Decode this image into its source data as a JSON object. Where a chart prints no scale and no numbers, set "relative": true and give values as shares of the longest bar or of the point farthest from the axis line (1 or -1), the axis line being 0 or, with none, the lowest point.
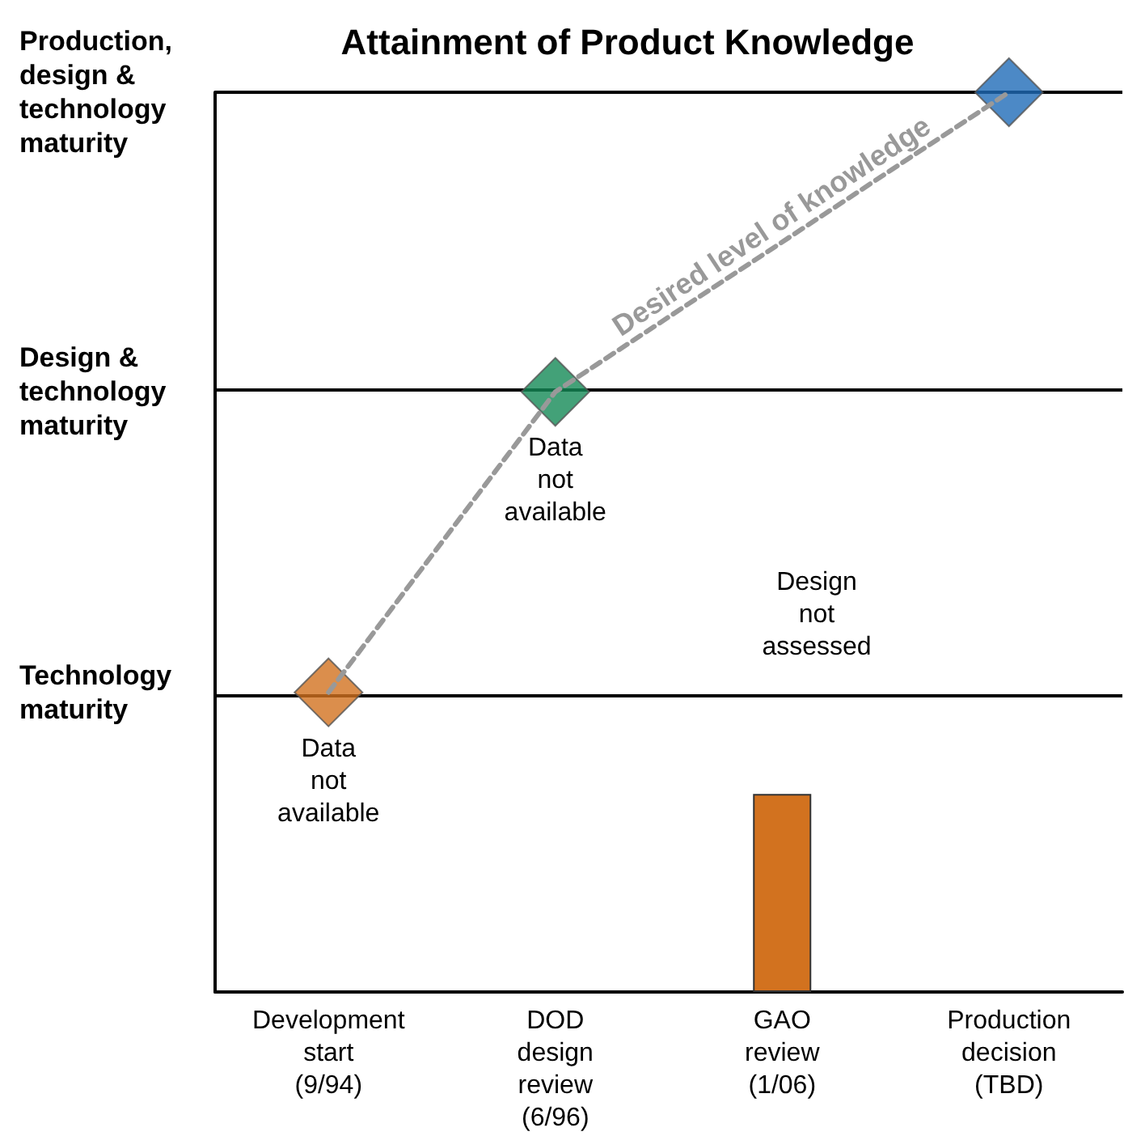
{
  "chart_data": {
    "type": "bar",
    "title": "Attainment of Product Knowledge",
    "relative": true,
    "categories": [
      "Development start (9/94)",
      "DOD design review (6/96)",
      "GAO review (1/06)",
      "Production decision (TBD)"
    ],
    "series": [
      {
        "name": "Desired level of knowledge",
        "type": "line",
        "color": "#999999",
        "line_style": "dashed",
        "marker": "none",
        "values": [
          0.333,
          0.667,
          null,
          1
        ]
      },
      {
        "type": "scatter",
        "marker": "diamond",
        "colors": [
          "#d2721f",
          "#148a56",
          "#1f6bb8",
          "#1f6bb8"
        ],
        "values": [
          0.333,
          0.667,
          null,
          1
        ]
      },
      {
        "color": "#d2721f",
        "values": [
          null,
          null,
          0.22,
          null
        ]
      }
    ],
    "ref_lines": [
      {
        "axis": "y",
        "value": 0.333,
        "label": "Technology maturity",
        "color": "#000000"
      },
      {
        "axis": "y",
        "value": 0.667,
        "label": "Design & technology maturity",
        "color": "#000000"
      },
      {
        "axis": "y",
        "value": 1,
        "label": "Production, design & technology maturity",
        "color": "#000000"
      }
    ],
    "annotations": [
      {
        "text": "Data not available",
        "x": "Development start (9/94)",
        "y": 0.333
      },
      {
        "text": "Data not available",
        "x": "DOD design review (6/96)",
        "y": 0.667
      },
      "Design not assessed"
    ]
  }
}
